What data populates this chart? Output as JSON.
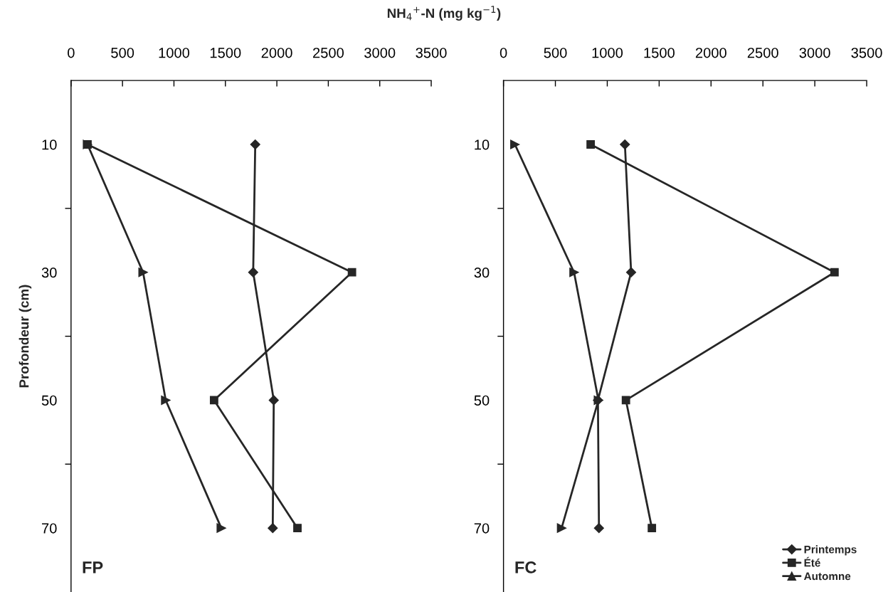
{
  "chart_data": [
    {
      "type": "line",
      "xlabel": "NH$_{4}$$^{+}$-N (mg kg$^{−1}$)",
      "ylabel": "Profondeur (cm)",
      "annotations": [
        "FP"
      ],
      "xlim": [
        0,
        3500
      ],
      "xticks": [
        0,
        500,
        1000,
        1500,
        2000,
        2500,
        3000,
        3500
      ],
      "ylim": [
        80,
        0
      ],
      "yticks": [
        10,
        {
          "value": 20,
          "label": null
        },
        30,
        {
          "value": 40,
          "label": null
        },
        50,
        {
          "value": 60,
          "label": null
        },
        70
      ],
      "grid": false,
      "legend": false,
      "series": [
        {
          "color": "#262626",
          "marker": "diamond",
          "x": [
            1790,
            1770,
            1970,
            1960
          ],
          "values": [
            10,
            30,
            50,
            70
          ]
        },
        {
          "color": "#262626",
          "marker": "square",
          "x": [
            160,
            2730,
            1390,
            2200
          ],
          "values": [
            10,
            30,
            50,
            70
          ]
        },
        {
          "color": "#262626",
          "marker": "triangle",
          "x": [
            160,
            700,
            920,
            1460
          ],
          "values": [
            10,
            30,
            50,
            70
          ]
        }
      ]
    },
    {
      "type": "line",
      "annotations": [
        "FC"
      ],
      "xlim": [
        0,
        3500
      ],
      "xticks": [
        0,
        500,
        1000,
        1500,
        2000,
        2500,
        3000,
        3500
      ],
      "ylim": [
        80,
        0
      ],
      "yticks": [
        10,
        {
          "value": 20,
          "label": null
        },
        30,
        {
          "value": 40,
          "label": null
        },
        50,
        {
          "value": 60,
          "label": null
        },
        70
      ],
      "grid": false,
      "legend": "bottom right",
      "series": [
        {
          "name": "Printemps",
          "color": "#262626",
          "marker": "diamond",
          "x": [
            1170,
            1230,
            910,
            920
          ],
          "values": [
            10,
            30,
            50,
            70
          ]
        },
        {
          "name": "Été",
          "color": "#262626",
          "marker": "square",
          "x": [
            840,
            3190,
            1180,
            1430
          ],
          "values": [
            10,
            30,
            50,
            70
          ]
        },
        {
          "name": "Automne",
          "color": "#262626",
          "marker": "triangle",
          "x": [
            110,
            680,
            915,
            560
          ],
          "values": [
            10,
            30,
            50,
            70
          ]
        }
      ]
    }
  ]
}
